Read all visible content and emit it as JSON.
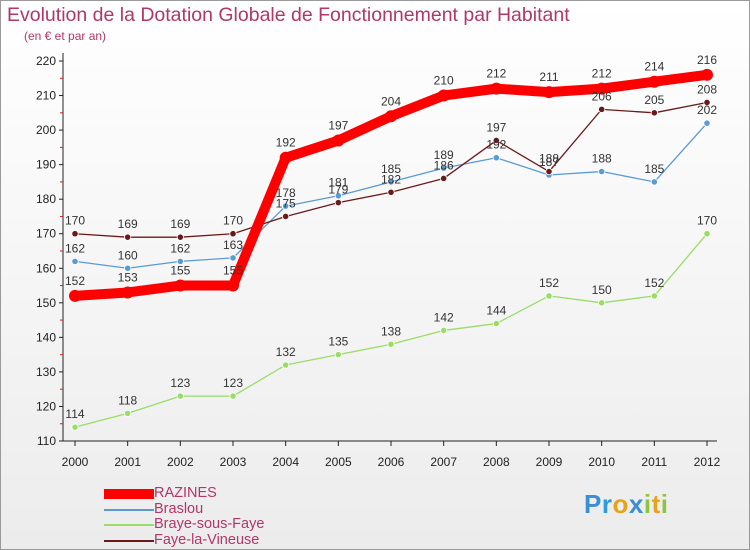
{
  "chart_data": {
    "type": "line",
    "title": "Evolution de la Dotation Globale de Fonctionnement par Habitant",
    "subtitle": "(en € et par an)",
    "categories": [
      "2000",
      "2001",
      "2002",
      "2003",
      "2004",
      "2005",
      "2006",
      "2007",
      "2008",
      "2009",
      "2010",
      "2011",
      "2012"
    ],
    "ylim": [
      110,
      220
    ],
    "yticks": [
      110,
      120,
      130,
      140,
      150,
      160,
      170,
      180,
      190,
      200,
      210,
      220
    ],
    "grid": false,
    "legend_placement": "bottom-left",
    "series": [
      {
        "name": "RAZINES",
        "color": "#ff0000",
        "values": [
          152,
          153,
          155,
          155,
          192,
          197,
          204,
          210,
          212,
          211,
          212,
          214,
          216
        ]
      },
      {
        "name": "Braslou",
        "color": "#5a9bd3",
        "values": [
          162,
          160,
          162,
          163,
          178,
          181,
          185,
          189,
          192,
          187,
          188,
          185,
          202
        ]
      },
      {
        "name": "Braye-sous-Faye",
        "color": "#99dd66",
        "values": [
          114,
          118,
          123,
          123,
          132,
          135,
          138,
          142,
          144,
          152,
          150,
          152,
          170
        ]
      },
      {
        "name": "Faye-la-Vineuse",
        "color": "#6b1a1a",
        "values": [
          170,
          169,
          169,
          170,
          175,
          179,
          182,
          186,
          197,
          188,
          206,
          205,
          208
        ]
      }
    ]
  },
  "brand": {
    "letters": [
      {
        "char": "P",
        "color": "#3b8fd4"
      },
      {
        "char": "r",
        "color": "#2f9bd8"
      },
      {
        "char": "o",
        "color": "#e6a31c"
      },
      {
        "char": "x",
        "color": "#3b8fd4"
      },
      {
        "char": "i",
        "color": "#8cc63f"
      },
      {
        "char": "t",
        "color": "#e6a31c"
      },
      {
        "char": "i",
        "color": "#8cc63f"
      }
    ]
  }
}
